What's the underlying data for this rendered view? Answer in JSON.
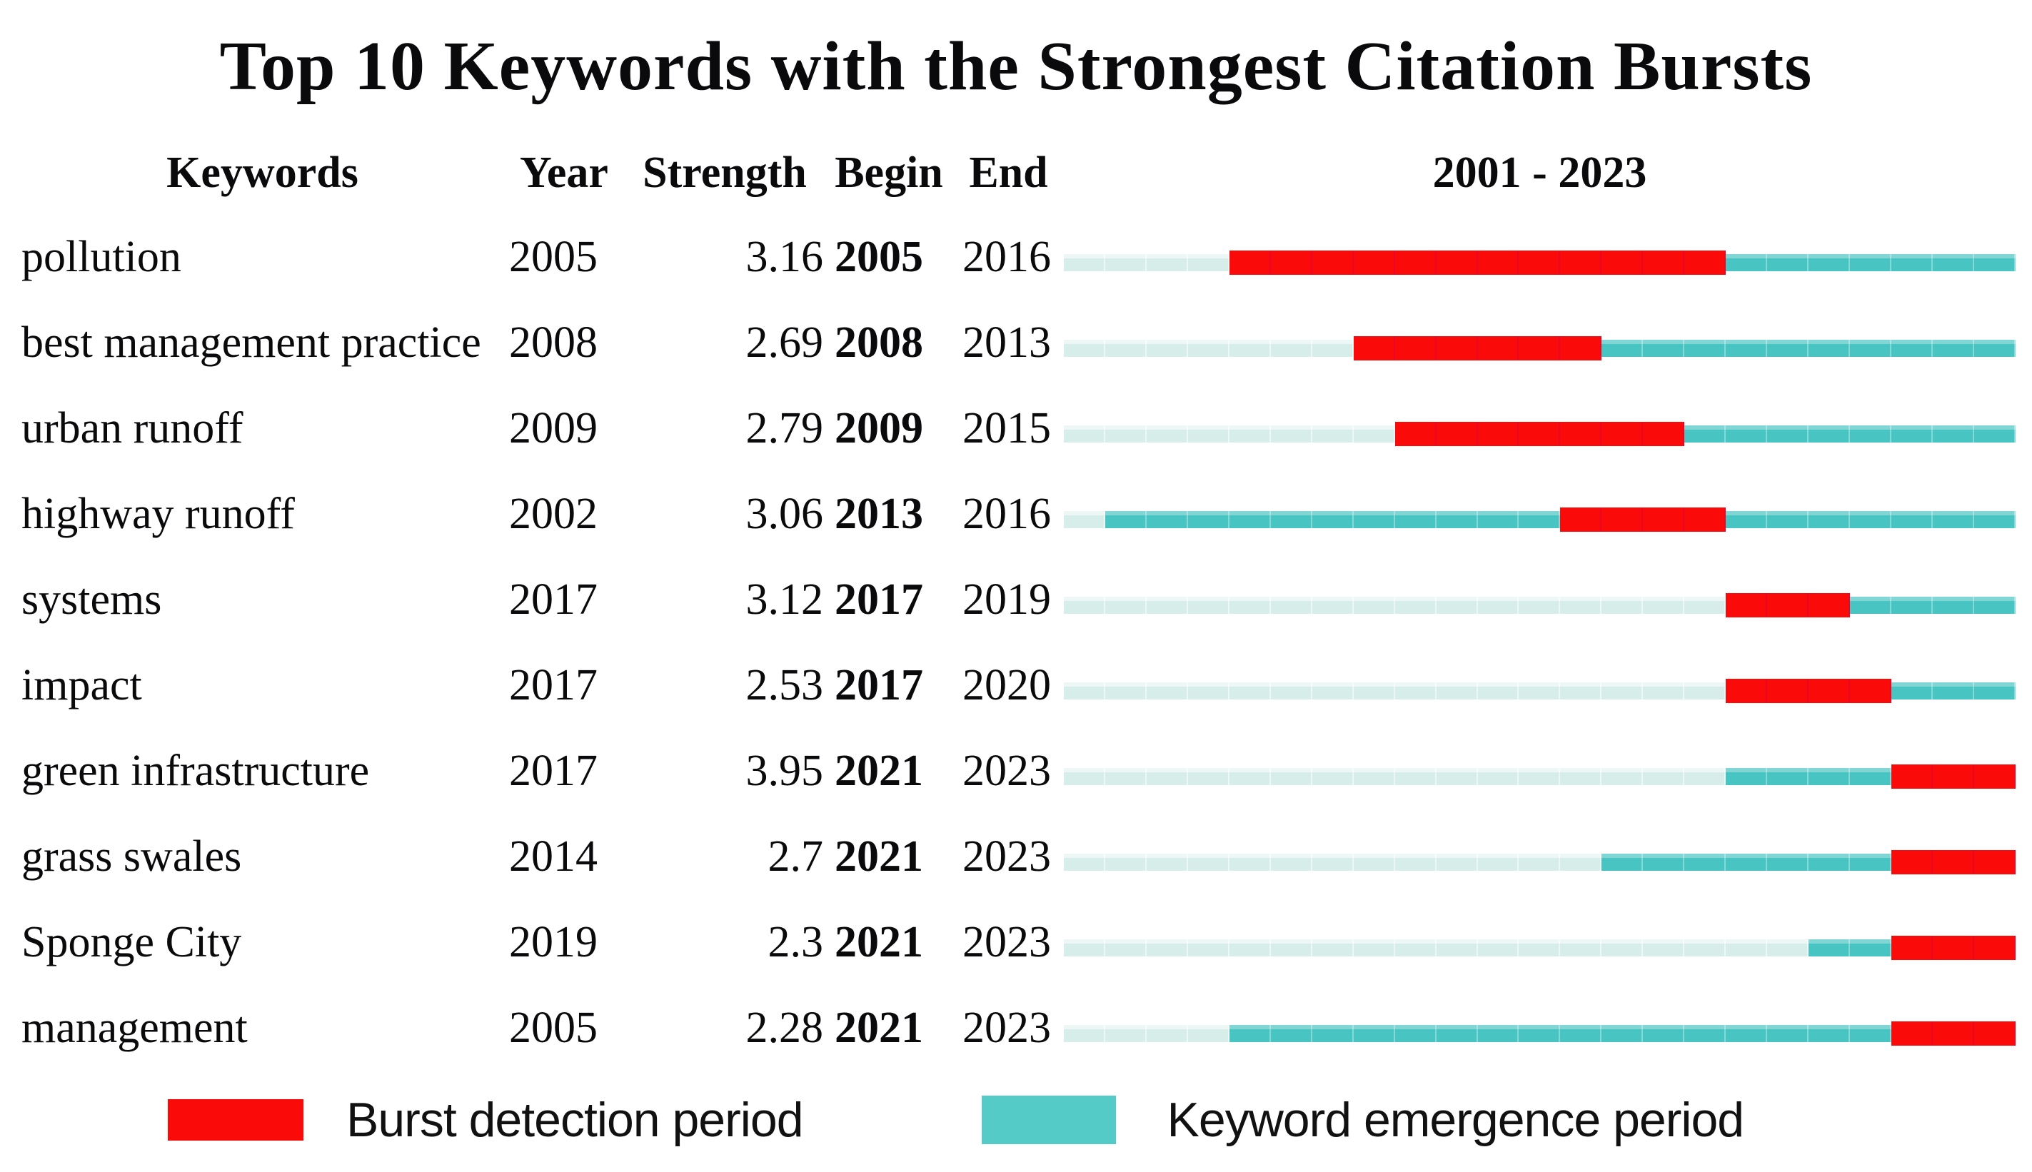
{
  "chart_data": {
    "type": "table",
    "subtype": "citation_burst_timeline",
    "title": "Top 10 Keywords with the Strongest Citation Bursts",
    "headers": {
      "keywords": "Keywords",
      "year": "Year",
      "strength": "Strength",
      "begin": "Begin",
      "end": "End",
      "timeline": "2001 - 2023"
    },
    "year_range": [
      2001,
      2023
    ],
    "rows": [
      {
        "keyword": "pollution",
        "year": 2005,
        "strength": "3.16",
        "begin": 2005,
        "end": 2016
      },
      {
        "keyword": "best management practice",
        "year": 2008,
        "strength": "2.69",
        "begin": 2008,
        "end": 2013
      },
      {
        "keyword": "urban runoff",
        "year": 2009,
        "strength": "2.79",
        "begin": 2009,
        "end": 2015
      },
      {
        "keyword": "highway runoff",
        "year": 2002,
        "strength": "3.06",
        "begin": 2013,
        "end": 2016
      },
      {
        "keyword": "systems",
        "year": 2017,
        "strength": "3.12",
        "begin": 2017,
        "end": 2019
      },
      {
        "keyword": "impact",
        "year": 2017,
        "strength": "2.53",
        "begin": 2017,
        "end": 2020
      },
      {
        "keyword": "green infrastructure",
        "year": 2017,
        "strength": "3.95",
        "begin": 2021,
        "end": 2023
      },
      {
        "keyword": "grass swales",
        "year": 2014,
        "strength": "2.7",
        "begin": 2021,
        "end": 2023
      },
      {
        "keyword": "Sponge City",
        "year": 2019,
        "strength": "2.3",
        "begin": 2021,
        "end": 2023
      },
      {
        "keyword": "management",
        "year": 2005,
        "strength": "2.28",
        "begin": 2021,
        "end": 2023
      }
    ],
    "colors": {
      "burst": "#fb0a0a",
      "emergence": "#48c5c3",
      "pre_emergence": "#d7edea",
      "legend_emergence": "#55cbc7"
    },
    "legend": [
      {
        "label": "Burst detection period",
        "color_key": "burst"
      },
      {
        "label": "Keyword emergence period",
        "color_key": "emergence"
      }
    ],
    "layout": {
      "grid": "off",
      "legend_position": "bottom"
    }
  }
}
